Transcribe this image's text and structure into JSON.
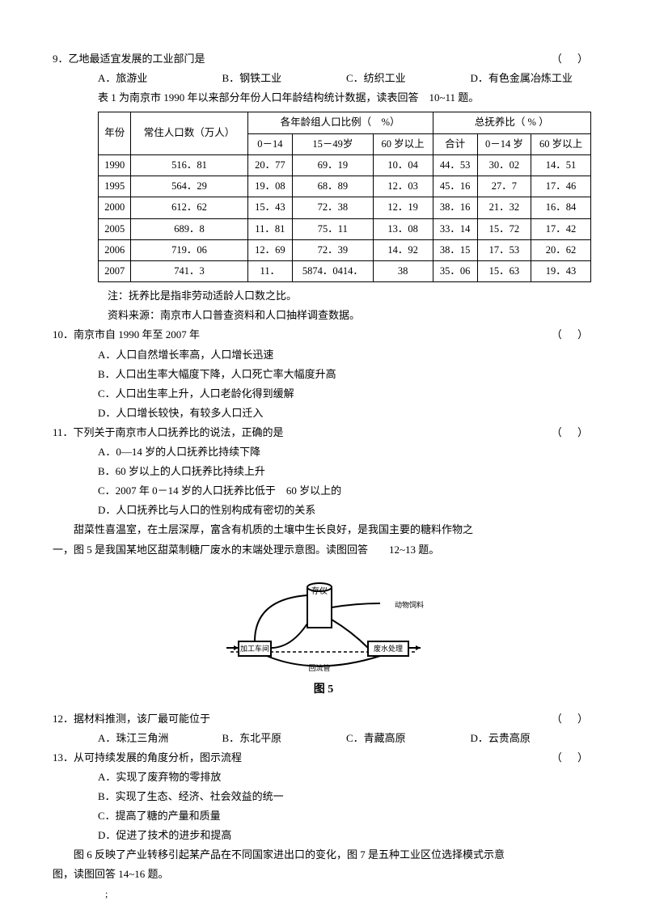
{
  "marks": {
    "topdot": ".",
    "botdot": ";"
  },
  "q9": {
    "stem": "9．乙地最适宜发展的工业部门是",
    "paren": "（    ）",
    "opts": [
      "A．旅游业",
      "B．钢铁工业",
      "C．纺织工业",
      "D．有色金属冶炼工业"
    ]
  },
  "tableIntro": "表 1 为南京市 1990 年以来部分年份人口年龄结构统计数据，读表回答　10~11 题。",
  "thead": {
    "c1": "年份",
    "c2": "常住人口数（万人）",
    "g1": "各年龄组人口比例（　%）",
    "g1a": "0－14",
    "g1b": "15－49岁",
    "g1c": "60 岁以上",
    "g2": "总抚养比（ % ）",
    "g2a": "合计",
    "g2b": "0－14 岁",
    "g2c": "60 岁以上"
  },
  "rows": [
    [
      "1990",
      "516．81",
      "20．77",
      "69．19",
      "10．04",
      "44．53",
      "30．02",
      "14．51"
    ],
    [
      "1995",
      "564．29",
      "19．08",
      "68．89",
      "12．03",
      "45．16",
      "27．7",
      "17．46"
    ],
    [
      "2000",
      "612．62",
      "15．43",
      "72．38",
      "12．19",
      "38．16",
      "21．32",
      "16．84"
    ],
    [
      "2005",
      "689．8",
      "11．81",
      "75．11",
      "13．08",
      "33．14",
      "15．72",
      "17．42"
    ],
    [
      "2006",
      "719．06",
      "12．69",
      "72．39",
      "14．92",
      "38．15",
      "17．53",
      "20．62"
    ],
    [
      "2007",
      "741．3",
      "11．",
      "5874．0414．",
      "38",
      "35．06",
      "15．63",
      "19．43"
    ]
  ],
  "notes": [
    "注：抚养比是指非劳动适龄人口数之比。",
    "资料来源：南京市人口普查资料和人口抽样调查数据。"
  ],
  "q10": {
    "stem": "10．南京市自 1990 年至 2007 年",
    "paren": "（    ）",
    "opts": [
      "A．人口自然增长率高，人口增长迅速",
      "B．人口出生率大幅度下降，人口死亡率大幅度升高",
      "C．人口出生率上升，人口老龄化得到缓解",
      "D．人口增长较快，有较多人口迁入"
    ]
  },
  "q11": {
    "stem": "11．下列关于南京市人口抚养比的说法，正确的是",
    "paren": "（    ）",
    "opts": [
      "A．0—14 岁的人口抚养比持续下降",
      "B．60 岁以上的人口抚养比持续上升",
      "C．2007 年 0－14 岁的人口抚养比低于　60 岁以上的",
      "D．人口抚养比与人口的性别构成有密切的关系"
    ]
  },
  "passage": [
    "　　甜菜性喜温室，在土层深厚，富含有机质的土壤中生长良好，是我国主要的糖料作物之",
    "一，图 5 是我国某地区甜菜制糖厂废水的末端处理示意图。读图回答　　12~13 题。"
  ],
  "figLabel": "图 5",
  "q12": {
    "stem": "12．据材料推测，该厂最可能位于",
    "paren": "（    ）",
    "opts": [
      "A．珠江三角洲",
      "B．东北平原",
      "C．青藏高原",
      "D．云贵高原"
    ]
  },
  "q13": {
    "stem": "13．从可持续发展的角度分析，图示流程",
    "paren": "（    ）",
    "opts": [
      "A．实现了废弃物的零排放",
      "B．实现了生态、经济、社会效益的统一",
      "C．提高了糖的产量和质量",
      "D．促进了技术的进步和提高"
    ]
  },
  "tail": [
    "　　图 6 反映了产业转移引起某产品在不同国家进出口的变化，图 7 是五种工业区位选择模式示意",
    "图，读图回答 14~16 题。"
  ]
}
